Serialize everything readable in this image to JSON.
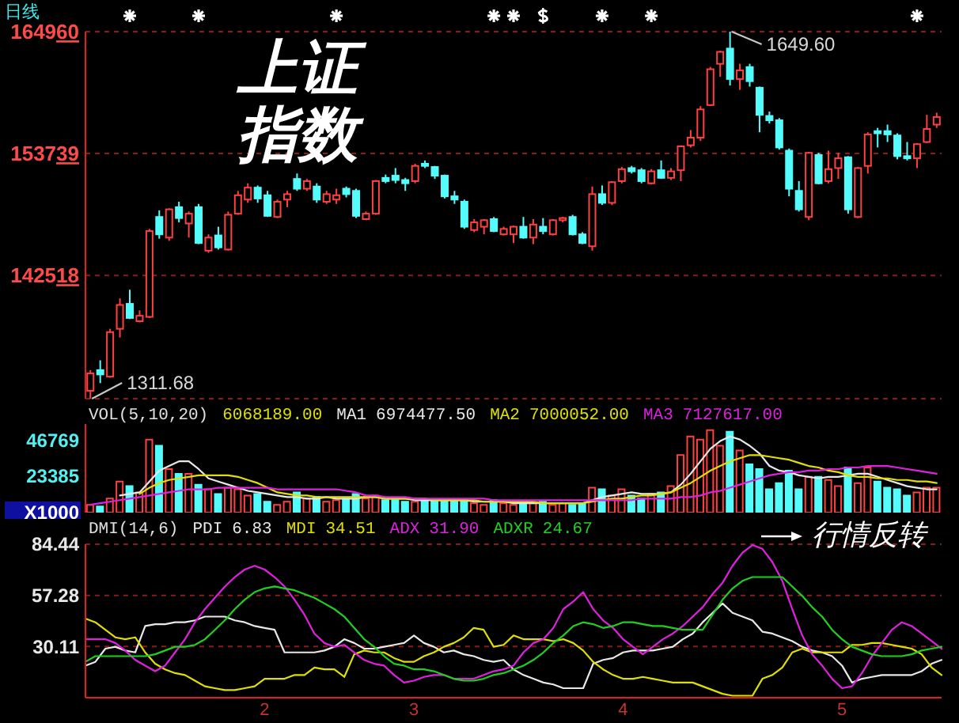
{
  "chart_data": [
    {
      "type": "candlestick",
      "title": "上证指数",
      "subtitle": "日线",
      "categories": [
        null,
        null,
        null,
        null,
        null,
        null,
        null,
        null,
        null,
        null,
        null,
        null,
        null,
        null,
        null,
        null,
        null,
        null,
        null,
        null,
        null,
        null,
        null,
        null,
        null,
        null,
        null,
        null,
        null,
        null,
        null,
        null,
        null,
        null,
        null,
        null,
        null,
        null,
        null,
        null,
        null,
        null,
        null,
        null,
        null,
        null,
        null,
        null,
        null,
        null,
        null,
        null,
        null,
        null,
        null,
        null,
        null,
        null,
        null,
        null,
        null,
        null,
        null,
        null,
        null,
        null,
        null,
        null,
        null,
        null,
        null,
        null,
        null,
        null,
        null,
        null,
        null,
        null,
        null,
        null,
        null,
        null,
        null,
        null,
        null,
        null,
        null
      ],
      "ohlc": [
        [
          131900,
          133800,
          131168,
          133500
        ],
        [
          133800,
          134700,
          132600,
          133400
        ],
        [
          133200,
          137600,
          133100,
          137300
        ],
        [
          137600,
          140400,
          136800,
          139800
        ],
        [
          139900,
          141200,
          138500,
          138600
        ],
        [
          138300,
          139300,
          138200,
          138800
        ],
        [
          138700,
          146800,
          138600,
          146600
        ],
        [
          147900,
          148500,
          145900,
          146300
        ],
        [
          146000,
          148700,
          145700,
          148600
        ],
        [
          148800,
          149300,
          147400,
          147800
        ],
        [
          147300,
          148400,
          146000,
          148200
        ],
        [
          148800,
          149100,
          145400,
          145500
        ],
        [
          144800,
          146300,
          144600,
          146000
        ],
        [
          146200,
          147000,
          144900,
          145100
        ],
        [
          144900,
          148400,
          144800,
          148100
        ],
        [
          148200,
          150300,
          148100,
          149900
        ],
        [
          149500,
          151000,
          149200,
          150600
        ],
        [
          150600,
          150800,
          149200,
          149600
        ],
        [
          149900,
          150300,
          147900,
          148000
        ],
        [
          147900,
          149500,
          147800,
          149300
        ],
        [
          149500,
          150300,
          148800,
          150000
        ],
        [
          151400,
          151900,
          150300,
          150500
        ],
        [
          150500,
          151400,
          150300,
          151200
        ],
        [
          150700,
          151000,
          149200,
          149500
        ],
        [
          149300,
          150300,
          149100,
          150000
        ],
        [
          149500,
          150500,
          149100,
          149900
        ],
        [
          150500,
          150700,
          149700,
          150000
        ],
        [
          150300,
          150500,
          147800,
          148000
        ],
        [
          147700,
          148400,
          147600,
          148200
        ],
        [
          148200,
          151300,
          148100,
          151200
        ],
        [
          151500,
          151800,
          151000,
          151200
        ],
        [
          151700,
          152400,
          151000,
          151300
        ],
        [
          151300,
          151500,
          150300,
          151000
        ],
        [
          151200,
          152800,
          151000,
          152600
        ],
        [
          152800,
          153100,
          152400,
          152600
        ],
        [
          152500,
          152600,
          151400,
          151700
        ],
        [
          151700,
          151800,
          149600,
          149800
        ],
        [
          149800,
          150300,
          149100,
          149500
        ],
        [
          149300,
          149500,
          146800,
          147000
        ],
        [
          146700,
          147700,
          146500,
          147400
        ],
        [
          147000,
          147700,
          146300,
          147600
        ],
        [
          147700,
          147900,
          146500,
          146600
        ],
        [
          146300,
          147000,
          146200,
          146800
        ],
        [
          146300,
          147100,
          145500,
          147000
        ],
        [
          147000,
          147900,
          145900,
          146000
        ],
        [
          146000,
          147700,
          145400,
          147200
        ],
        [
          147000,
          147800,
          146300,
          146600
        ],
        [
          146300,
          147700,
          146200,
          147600
        ],
        [
          147600,
          147900,
          147400,
          147800
        ],
        [
          147900,
          148100,
          146200,
          146300
        ],
        [
          146300,
          146500,
          145400,
          145500
        ],
        [
          145200,
          150700,
          144800,
          150000
        ],
        [
          150000,
          150800,
          149000,
          149200
        ],
        [
          149200,
          151200,
          149000,
          151100
        ],
        [
          151200,
          152500,
          151000,
          152300
        ],
        [
          152400,
          152600,
          151900,
          152100
        ],
        [
          152200,
          152400,
          151000,
          151200
        ],
        [
          151000,
          152300,
          150900,
          152100
        ],
        [
          152200,
          153100,
          151400,
          151500
        ],
        [
          151500,
          152400,
          151300,
          152100
        ],
        [
          152200,
          154500,
          151200,
          154400
        ],
        [
          154500,
          155900,
          154300,
          155200
        ],
        [
          155200,
          158100,
          154900,
          157800
        ],
        [
          158200,
          161700,
          158100,
          161500
        ],
        [
          162000,
          163200,
          160800,
          163100
        ],
        [
          163400,
          164960,
          160000,
          160600
        ],
        [
          160600,
          162000,
          159600,
          161400
        ],
        [
          161700,
          162000,
          159900,
          160400
        ],
        [
          159800,
          159900,
          155700,
          157300
        ],
        [
          157200,
          157600,
          156500,
          156800
        ],
        [
          156800,
          157000,
          154100,
          154300
        ],
        [
          154000,
          154200,
          149800,
          150500
        ],
        [
          150300,
          151200,
          148400,
          148600
        ],
        [
          147900,
          153900,
          147600,
          153800
        ],
        [
          153600,
          153800,
          150900,
          151000
        ],
        [
          151200,
          154000,
          151000,
          152300
        ],
        [
          152400,
          153800,
          151400,
          153300
        ],
        [
          153400,
          153500,
          148200,
          148600
        ],
        [
          147900,
          152500,
          147800,
          152400
        ],
        [
          152600,
          155700,
          151900,
          155500
        ],
        [
          155800,
          156100,
          154300,
          155600
        ],
        [
          155800,
          156400,
          154800,
          155500
        ],
        [
          155400,
          155600,
          153200,
          153500
        ],
        [
          153500,
          154800,
          153100,
          153300
        ],
        [
          153300,
          154700,
          152400,
          154600
        ],
        [
          154800,
          157300,
          154700,
          156000
        ],
        [
          156400,
          157500,
          156100,
          157100
        ]
      ],
      "colors": [
        "#ff4040",
        "#54fcfc",
        "#ff4040",
        "#ff4040",
        "#54fcfc",
        "#ff4040",
        "#ff4040",
        "#54fcfc",
        "#ff4040",
        "#54fcfc",
        "#ff4040",
        "#54fcfc",
        "#ff4040",
        "#54fcfc",
        "#ff4040",
        "#ff4040",
        "#ff4040",
        "#54fcfc",
        "#54fcfc",
        "#ff4040",
        "#ff4040",
        "#54fcfc",
        "#ff4040",
        "#54fcfc",
        "#ff4040",
        "#ff4040",
        "#54fcfc",
        "#54fcfc",
        "#ff4040",
        "#ff4040",
        "#54fcfc",
        "#54fcfc",
        "#54fcfc",
        "#ff4040",
        "#54fcfc",
        "#54fcfc",
        "#54fcfc",
        "#54fcfc",
        "#54fcfc",
        "#ff4040",
        "#ff4040",
        "#54fcfc",
        "#ff4040",
        "#ff4040",
        "#54fcfc",
        "#ff4040",
        "#54fcfc",
        "#ff4040",
        "#ff4040",
        "#54fcfc",
        "#54fcfc",
        "#ff4040",
        "#54fcfc",
        "#ff4040",
        "#ff4040",
        "#54fcfc",
        "#54fcfc",
        "#ff4040",
        "#54fcfc",
        "#ff4040",
        "#ff4040",
        "#ff4040",
        "#ff4040",
        "#ff4040",
        "#ff4040",
        "#54fcfc",
        "#ff4040",
        "#54fcfc",
        "#54fcfc",
        "#54fcfc",
        "#54fcfc",
        "#54fcfc",
        "#54fcfc",
        "#ff4040",
        "#54fcfc",
        "#ff4040",
        "#ff4040",
        "#54fcfc",
        "#ff4040",
        "#ff4040",
        "#54fcfc",
        "#54fcfc",
        "#54fcfc",
        "#54fcfc",
        "#ff4040",
        "#ff4040",
        "#ff4040"
      ],
      "ylim": [
        131168,
        164960
      ],
      "yticks": [
        142518,
        153739,
        164960
      ],
      "grid": "y",
      "tick_labels": "y",
      "annotations": [
        "1649.60",
        "1311.68"
      ]
    },
    {
      "type": "bar",
      "title": "VOL(5,10,20)",
      "categories": [
        null,
        null,
        null,
        null,
        null,
        null,
        null,
        null,
        null,
        null,
        null,
        null,
        null,
        null,
        null,
        null,
        null,
        null,
        null,
        null,
        null,
        null,
        null,
        null,
        null,
        null,
        null,
        null,
        null,
        null,
        null,
        null,
        null,
        null,
        null,
        null,
        null,
        null,
        null,
        null,
        null,
        null,
        null,
        null,
        null,
        null,
        null,
        null,
        null,
        null,
        null,
        null,
        null,
        null,
        null,
        null,
        null,
        null,
        null,
        null,
        null,
        null,
        null,
        null,
        null,
        null,
        null,
        null,
        null,
        null,
        null,
        null,
        null,
        null,
        null,
        null,
        null,
        null,
        null,
        null,
        null,
        null,
        null,
        null,
        null,
        null,
        null
      ],
      "series": [
        {
          "type": "bar",
          "values": [
            5000,
            4000,
            9000,
            20000,
            17000,
            13000,
            47000,
            43000,
            28000,
            25000,
            25000,
            18000,
            15000,
            12000,
            16000,
            15000,
            11000,
            12000,
            7000,
            5000,
            7000,
            13000,
            9000,
            10000,
            7000,
            8000,
            9000,
            12000,
            9000,
            11000,
            8000,
            8000,
            7000,
            7000,
            8000,
            8000,
            8000,
            8000,
            8000,
            6000,
            5000,
            8000,
            6000,
            5000,
            6000,
            6000,
            7000,
            5000,
            6000,
            5000,
            6000,
            16000,
            15000,
            11000,
            15000,
            11000,
            9000,
            12000,
            13000,
            17000,
            37000,
            49000,
            47000,
            53000,
            43000,
            52000,
            40000,
            31000,
            28000,
            15000,
            19000,
            27000,
            15000,
            23000,
            23000,
            21000,
            17000,
            29000,
            19000,
            29000,
            20000,
            16000,
            15000,
            11000,
            13000,
            16000,
            16000
          ],
          "colors": [
            "#ff4040",
            "#54fcfc",
            "#ff4040",
            "#ff4040",
            "#54fcfc",
            "#ff4040",
            "#ff4040",
            "#54fcfc",
            "#ff4040",
            "#54fcfc",
            "#ff4040",
            "#54fcfc",
            "#ff4040",
            "#54fcfc",
            "#ff4040",
            "#ff4040",
            "#ff4040",
            "#54fcfc",
            "#54fcfc",
            "#ff4040",
            "#ff4040",
            "#54fcfc",
            "#ff4040",
            "#54fcfc",
            "#ff4040",
            "#ff4040",
            "#54fcfc",
            "#54fcfc",
            "#ff4040",
            "#ff4040",
            "#54fcfc",
            "#54fcfc",
            "#54fcfc",
            "#ff4040",
            "#54fcfc",
            "#54fcfc",
            "#54fcfc",
            "#54fcfc",
            "#54fcfc",
            "#ff4040",
            "#ff4040",
            "#54fcfc",
            "#ff4040",
            "#ff4040",
            "#54fcfc",
            "#ff4040",
            "#54fcfc",
            "#ff4040",
            "#ff4040",
            "#54fcfc",
            "#54fcfc",
            "#ff4040",
            "#54fcfc",
            "#ff4040",
            "#ff4040",
            "#54fcfc",
            "#54fcfc",
            "#ff4040",
            "#54fcfc",
            "#ff4040",
            "#ff4040",
            "#ff4040",
            "#ff4040",
            "#ff4040",
            "#ff4040",
            "#54fcfc",
            "#ff4040",
            "#54fcfc",
            "#54fcfc",
            "#54fcfc",
            "#54fcfc",
            "#54fcfc",
            "#54fcfc",
            "#ff4040",
            "#54fcfc",
            "#ff4040",
            "#ff4040",
            "#54fcfc",
            "#ff4040",
            "#ff4040",
            "#54fcfc",
            "#54fcfc",
            "#54fcfc",
            "#54fcfc",
            "#ff4040",
            "#ff4040",
            "#ff4040"
          ]
        },
        {
          "type": "line",
          "name": "MA1",
          "color": "#e8e8e8",
          "values": [
            null,
            null,
            null,
            11000,
            12000,
            13000,
            20000,
            27000,
            30000,
            33000,
            33000,
            28000,
            22000,
            20000,
            18000,
            16000,
            14000,
            13000,
            12000,
            11000,
            10000,
            10000,
            9000,
            9000,
            10000,
            9000,
            9000,
            9000,
            10000,
            10000,
            9000,
            9000,
            9000,
            8000,
            8000,
            8000,
            8000,
            8000,
            8000,
            7000,
            7000,
            7000,
            7000,
            6000,
            6000,
            6000,
            6000,
            6000,
            6000,
            6000,
            6000,
            8000,
            10000,
            11000,
            12000,
            13000,
            12000,
            12000,
            12000,
            13000,
            18000,
            25000,
            33000,
            41000,
            46000,
            49000,
            47000,
            43000,
            38000,
            30000,
            27000,
            26000,
            24000,
            23000,
            22000,
            23000,
            23000,
            24000,
            25000,
            25000,
            23000,
            21000,
            19000,
            17000,
            16000,
            15000,
            15000
          ]
        },
        {
          "type": "line",
          "name": "MA2",
          "color": "#e0e000",
          "values": [
            null,
            null,
            null,
            null,
            null,
            12000,
            16000,
            19000,
            21000,
            22000,
            23000,
            24000,
            24000,
            24000,
            24000,
            23000,
            21000,
            19000,
            16000,
            13000,
            12000,
            11000,
            11000,
            10000,
            10000,
            10000,
            10000,
            10000,
            10000,
            10000,
            9000,
            9000,
            9000,
            9000,
            9000,
            8000,
            8000,
            8000,
            8000,
            8000,
            7000,
            7000,
            7000,
            7000,
            7000,
            7000,
            6000,
            6000,
            6000,
            6000,
            6000,
            7000,
            8000,
            9000,
            9000,
            10000,
            11000,
            11000,
            12000,
            13000,
            16000,
            19000,
            23000,
            27000,
            30000,
            33000,
            35000,
            37000,
            37000,
            36000,
            35000,
            34000,
            32000,
            30000,
            29000,
            27000,
            26000,
            24000,
            23000,
            23000,
            22000,
            22000,
            21000,
            21000,
            20000,
            20000,
            19000
          ]
        },
        {
          "type": "line",
          "name": "MA3",
          "color": "#e020e0",
          "values": [
            5000,
            6000,
            7000,
            8000,
            9000,
            10000,
            11000,
            12000,
            13000,
            14000,
            15000,
            15000,
            15000,
            16000,
            16000,
            16000,
            16000,
            16000,
            16000,
            15000,
            15000,
            15000,
            15000,
            15000,
            15000,
            15000,
            14000,
            13000,
            11000,
            11000,
            10000,
            10000,
            10000,
            9000,
            9000,
            9000,
            9000,
            9000,
            9000,
            9000,
            9000,
            8000,
            8000,
            8000,
            8000,
            8000,
            8000,
            8000,
            8000,
            8000,
            8000,
            8000,
            8000,
            8000,
            8000,
            8000,
            9000,
            9000,
            9000,
            9000,
            10000,
            10000,
            11000,
            13000,
            14000,
            16000,
            18000,
            20000,
            22000,
            24000,
            25000,
            26000,
            26000,
            27000,
            27000,
            28000,
            28000,
            29000,
            29000,
            30000,
            30000,
            30000,
            29000,
            28000,
            27000,
            26000,
            25000
          ]
        }
      ],
      "annotations": [
        "6068189.00",
        "6974477.50",
        "7000052.00",
        "7127617.00"
      ],
      "ylim": [
        0,
        57000
      ],
      "yticks": [
        {
          "value": 0,
          "label": "X1000"
        },
        23385,
        46769
      ],
      "tick_labels": "y",
      "legend": "top left"
    },
    {
      "type": "line",
      "title": "DMI(14,6)",
      "categories": [
        null,
        null,
        null,
        null,
        null,
        null,
        null,
        null,
        null,
        null,
        null,
        null,
        null,
        null,
        null,
        null,
        null,
        null,
        "2",
        null,
        null,
        null,
        null,
        null,
        null,
        null,
        null,
        null,
        null,
        null,
        null,
        null,
        null,
        "3",
        null,
        null,
        null,
        null,
        null,
        null,
        null,
        null,
        null,
        null,
        null,
        null,
        null,
        null,
        null,
        null,
        null,
        null,
        null,
        null,
        "4",
        null,
        null,
        null,
        null,
        null,
        null,
        null,
        null,
        null,
        null,
        null,
        null,
        null,
        null,
        null,
        null,
        null,
        null,
        null,
        null,
        null,
        "5",
        null,
        null,
        null,
        null,
        null,
        null,
        null,
        null,
        null,
        null
      ],
      "series": [
        {
          "name": "PDI",
          "color": "#e8e8e8",
          "values": [
            20,
            22,
            29,
            30,
            28,
            27,
            41,
            42,
            42,
            43,
            43,
            44,
            46,
            46,
            46,
            44,
            43,
            41,
            40,
            39,
            27,
            27,
            27,
            27,
            28,
            30,
            34,
            32,
            29,
            29,
            30,
            31,
            32,
            36,
            32,
            30,
            27,
            28,
            26,
            25,
            23,
            22,
            23,
            18,
            15,
            13,
            11,
            10,
            8,
            8,
            8,
            21,
            23,
            24,
            27,
            28,
            28,
            28,
            29,
            30,
            34,
            37,
            43,
            48,
            53,
            48,
            46,
            44,
            38,
            37,
            35,
            33,
            30,
            28,
            27,
            25,
            20,
            11,
            13,
            14,
            15,
            15,
            15,
            15,
            17,
            21,
            23
          ]
        },
        {
          "name": "MDI",
          "color": "#e0e000",
          "values": [
            45,
            43,
            39,
            35,
            34,
            35,
            27,
            21,
            18,
            16,
            15,
            12,
            9,
            8,
            7,
            7,
            8,
            9,
            13,
            13,
            13,
            15,
            15,
            19,
            18,
            18,
            14,
            26,
            28,
            27,
            27,
            24,
            22,
            22,
            25,
            27,
            30,
            32,
            35,
            40,
            39,
            30,
            31,
            36,
            34,
            34,
            34,
            33,
            34,
            32,
            28,
            22,
            18,
            15,
            13,
            13,
            14,
            13,
            12,
            11,
            11,
            11,
            9,
            7,
            5,
            4,
            4,
            4,
            13,
            15,
            19,
            27,
            29,
            27,
            27,
            27,
            27,
            31,
            31,
            32,
            32,
            31,
            30,
            29,
            26,
            19,
            15
          ]
        },
        {
          "name": "ADX",
          "color": "#e020e0",
          "values": [
            34,
            34,
            34,
            32,
            28,
            23,
            20,
            17,
            20,
            27,
            34,
            43,
            50,
            56,
            62,
            67,
            71,
            73,
            71,
            67,
            62,
            55,
            47,
            37,
            32,
            30,
            31,
            27,
            23,
            21,
            20,
            15,
            11,
            12,
            14,
            15,
            15,
            13,
            13,
            13,
            15,
            17,
            18,
            20,
            27,
            32,
            34,
            40,
            50,
            54,
            59,
            50,
            44,
            40,
            34,
            30,
            26,
            30,
            34,
            37,
            41,
            46,
            51,
            58,
            64,
            73,
            80,
            84,
            82,
            75,
            65,
            50,
            36,
            26,
            20,
            13,
            8,
            9,
            16,
            25,
            32,
            39,
            43,
            41,
            37,
            33,
            29
          ]
        },
        {
          "name": "ADXR",
          "color": "#20d020",
          "values": [
            22,
            25,
            25,
            25,
            25,
            25,
            25,
            26,
            28,
            30,
            30,
            31,
            34,
            39,
            44,
            50,
            55,
            59,
            61,
            62,
            61,
            60,
            58,
            56,
            53,
            50,
            46,
            40,
            34,
            30,
            25,
            21,
            20,
            18,
            18,
            17,
            15,
            13,
            12,
            12,
            13,
            15,
            16,
            18,
            20,
            23,
            27,
            32,
            36,
            41,
            43,
            42,
            40,
            41,
            43,
            43,
            42,
            41,
            41,
            40,
            39,
            39,
            39,
            47,
            55,
            61,
            65,
            67,
            67,
            67,
            67,
            62,
            57,
            51,
            46,
            39,
            34,
            30,
            28,
            26,
            25,
            25,
            25,
            26,
            28,
            29,
            30
          ]
        }
      ],
      "annotations": [
        "6.83",
        "34.51",
        "31.90",
        "24.67",
        "行情反转"
      ],
      "ylim": [
        2.96,
        84.44
      ],
      "yticks": [
        30.11,
        57.28,
        84.44
      ],
      "grid": "y",
      "legend": "top left"
    }
  ]
}
